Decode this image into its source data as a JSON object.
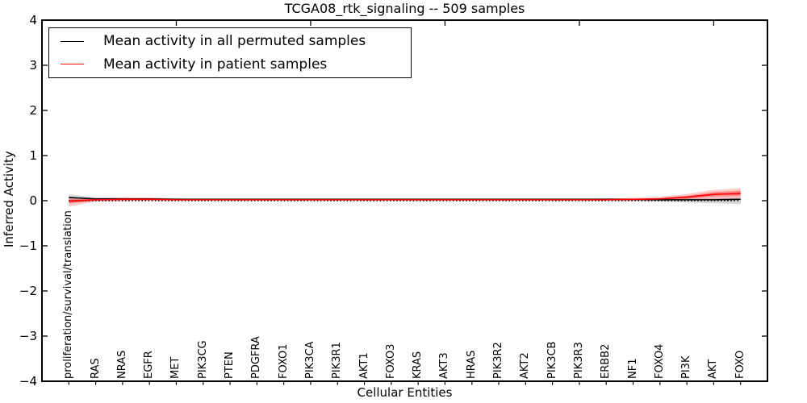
{
  "figure": {
    "title": "TCGA08_rtk_signaling -- 509 samples",
    "xlabel": "Cellular Entities",
    "ylabel": "Inferred Activity"
  },
  "legend": {
    "position": "upper left",
    "items": [
      {
        "label": "Mean activity in all permuted samples",
        "color": "#000000"
      },
      {
        "label": "Mean activity in patient samples",
        "color": "#ff0000"
      }
    ]
  },
  "chart_data": {
    "type": "line",
    "title": "TCGA08_rtk_signaling -- 509 samples",
    "xlabel": "Cellular Entities",
    "ylabel": "Inferred Activity",
    "xlim": [
      0,
      27
    ],
    "ylim": [
      -4,
      4
    ],
    "yticks": [
      4,
      3,
      2,
      1,
      0,
      -1,
      -2,
      -3,
      -4
    ],
    "xticks_major": [
      5,
      10,
      15,
      20,
      25
    ],
    "grid": false,
    "legend_position": "upper left",
    "zero_line": {
      "y": 0,
      "style": "dotted",
      "color": "#000000"
    },
    "categories": [
      "proliferation/survival/translation",
      "RAS",
      "NRAS",
      "EGFR",
      "MET",
      "PIK3CG",
      "PTEN",
      "PDGFRA",
      "FOXO1",
      "PIK3CA",
      "PIK3R1",
      "AKT1",
      "FOXO3",
      "KRAS",
      "AKT3",
      "HRAS",
      "PIK3R2",
      "AKT2",
      "PIK3CB",
      "PIK3R3",
      "ERBB2",
      "NF1",
      "FOXO4",
      "PI3K",
      "AKT",
      "FOXO"
    ],
    "x": [
      1,
      2,
      3,
      4,
      5,
      6,
      7,
      8,
      9,
      10,
      11,
      12,
      13,
      14,
      15,
      16,
      17,
      18,
      19,
      20,
      21,
      22,
      23,
      24,
      25,
      26
    ],
    "series": [
      {
        "name": "Mean activity in all permuted samples",
        "color": "#000000",
        "band_color": "rgba(0,0,0,0.15)",
        "values": [
          0.07,
          0.04,
          0.04,
          0.04,
          0.03,
          0.03,
          0.03,
          0.03,
          0.03,
          0.03,
          0.03,
          0.03,
          0.03,
          0.03,
          0.03,
          0.03,
          0.03,
          0.03,
          0.03,
          0.03,
          0.03,
          0.03,
          0.02,
          0.02,
          0.02,
          0.03
        ],
        "band_high": [
          0.14,
          0.07,
          0.06,
          0.06,
          0.05,
          0.05,
          0.05,
          0.05,
          0.05,
          0.05,
          0.05,
          0.05,
          0.05,
          0.05,
          0.05,
          0.05,
          0.05,
          0.05,
          0.05,
          0.05,
          0.05,
          0.05,
          0.05,
          0.05,
          0.06,
          0.07
        ],
        "band_low": [
          -0.04,
          0.0,
          0.01,
          0.01,
          0.01,
          0.01,
          0.01,
          0.01,
          0.01,
          0.01,
          0.01,
          0.01,
          0.01,
          0.01,
          0.01,
          0.01,
          0.01,
          0.01,
          0.01,
          0.01,
          0.01,
          0.0,
          -0.02,
          -0.04,
          -0.06,
          -0.08
        ]
      },
      {
        "name": "Mean activity in patient samples",
        "color": "#ff0000",
        "band_color": "rgba(255,0,0,0.2)",
        "inner_band_color": "rgba(255,0,0,0.35)",
        "values": [
          -0.01,
          0.02,
          0.03,
          0.03,
          0.02,
          0.02,
          0.02,
          0.02,
          0.02,
          0.02,
          0.02,
          0.02,
          0.02,
          0.02,
          0.02,
          0.02,
          0.02,
          0.02,
          0.02,
          0.02,
          0.02,
          0.03,
          0.04,
          0.08,
          0.14,
          0.16
        ],
        "band_high": [
          0.08,
          0.06,
          0.08,
          0.07,
          0.05,
          0.04,
          0.04,
          0.04,
          0.04,
          0.04,
          0.04,
          0.04,
          0.04,
          0.04,
          0.04,
          0.04,
          0.04,
          0.04,
          0.04,
          0.04,
          0.05,
          0.06,
          0.09,
          0.15,
          0.24,
          0.28
        ],
        "band_low": [
          -0.13,
          -0.02,
          -0.01,
          0.0,
          0.0,
          0.0,
          0.0,
          0.0,
          0.0,
          0.0,
          0.0,
          0.0,
          0.0,
          0.0,
          0.0,
          0.0,
          0.0,
          0.0,
          0.0,
          0.0,
          0.0,
          0.0,
          0.0,
          0.01,
          0.03,
          0.04
        ],
        "inner_band_high": [
          0.03,
          0.04,
          0.05,
          0.05,
          0.03,
          0.03,
          0.03,
          0.03,
          0.03,
          0.03,
          0.03,
          0.03,
          0.03,
          0.03,
          0.03,
          0.03,
          0.03,
          0.03,
          0.03,
          0.03,
          0.04,
          0.04,
          0.06,
          0.11,
          0.19,
          0.22
        ],
        "inner_band_low": [
          -0.06,
          0.0,
          0.01,
          0.01,
          0.01,
          0.01,
          0.01,
          0.01,
          0.01,
          0.01,
          0.01,
          0.01,
          0.01,
          0.01,
          0.01,
          0.01,
          0.01,
          0.01,
          0.01,
          0.01,
          0.01,
          0.01,
          0.01,
          0.04,
          0.09,
          0.1
        ]
      }
    ]
  }
}
